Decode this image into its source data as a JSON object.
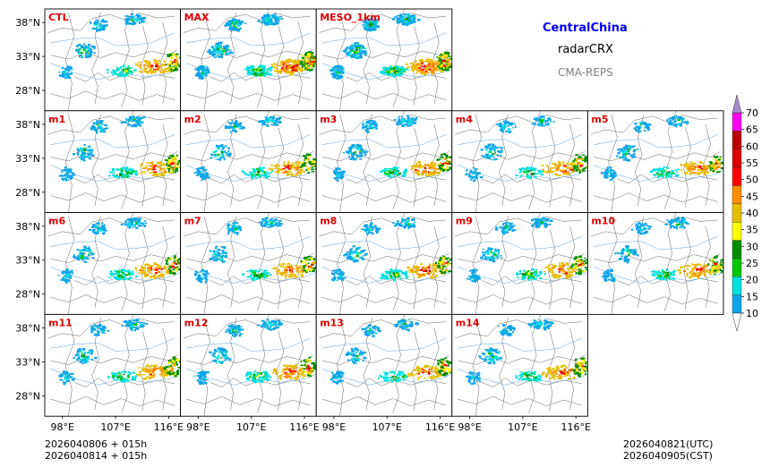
{
  "header": {
    "title": "CentralChina",
    "subtitle": "radarCRX",
    "source": "CMA-REPS"
  },
  "footer": {
    "init_line1": "2026040806  +  015h",
    "init_line2": "2026040814  +  015h",
    "valid_utc": "2026040821(UTC)",
    "valid_cst": "2026040905(CST)"
  },
  "chart_data": {
    "type": "heatmap",
    "variable": "radarCRX",
    "region": "CentralChina",
    "panels": [
      {
        "label": "CTL",
        "row": 0,
        "col": 0,
        "intensity": 1.0
      },
      {
        "label": "MAX",
        "row": 0,
        "col": 1,
        "intensity": 1.6
      },
      {
        "label": "MESO_1km",
        "row": 0,
        "col": 2,
        "intensity": 1.8
      },
      {
        "label": "m1",
        "row": 1,
        "col": 0,
        "intensity": 1.0
      },
      {
        "label": "m2",
        "row": 1,
        "col": 1,
        "intensity": 0.9
      },
      {
        "label": "m3",
        "row": 1,
        "col": 2,
        "intensity": 1.0
      },
      {
        "label": "m4",
        "row": 1,
        "col": 3,
        "intensity": 0.9
      },
      {
        "label": "m5",
        "row": 1,
        "col": 4,
        "intensity": 0.9
      },
      {
        "label": "m6",
        "row": 2,
        "col": 0,
        "intensity": 1.0
      },
      {
        "label": "m7",
        "row": 2,
        "col": 1,
        "intensity": 0.9
      },
      {
        "label": "m8",
        "row": 2,
        "col": 2,
        "intensity": 1.0
      },
      {
        "label": "m9",
        "row": 2,
        "col": 3,
        "intensity": 1.0
      },
      {
        "label": "m10",
        "row": 2,
        "col": 4,
        "intensity": 0.9
      },
      {
        "label": "m11",
        "row": 3,
        "col": 0,
        "intensity": 1.0
      },
      {
        "label": "m12",
        "row": 3,
        "col": 1,
        "intensity": 1.0
      },
      {
        "label": "m13",
        "row": 3,
        "col": 2,
        "intensity": 0.9
      },
      {
        "label": "m14",
        "row": 3,
        "col": 3,
        "intensity": 1.0
      }
    ],
    "lat_ticks": [
      38,
      33,
      28
    ],
    "lat_tick_labels": [
      "38°N",
      "33°N",
      "28°N"
    ],
    "lon_ticks": [
      98,
      107,
      116
    ],
    "lon_tick_labels": [
      "98°E",
      "107°E",
      "116°E"
    ],
    "lat_range": [
      25,
      40
    ],
    "lon_range": [
      95,
      118
    ],
    "colorbar": {
      "levels": [
        10,
        15,
        20,
        25,
        30,
        35,
        40,
        45,
        50,
        55,
        60,
        65,
        70
      ],
      "level_labels": [
        "10",
        "15",
        "20",
        "25",
        "30",
        "35",
        "40",
        "45",
        "50",
        "55",
        "60",
        "65",
        "70"
      ],
      "colors": [
        "#0ea5e8",
        "#00e0e0",
        "#00c800",
        "#008c00",
        "#ffff00",
        "#e6be00",
        "#ff8c00",
        "#ff0000",
        "#dc0000",
        "#bc0000",
        "#ff00f0",
        "#9600b4",
        "#a48ccf"
      ],
      "extend": "both"
    }
  }
}
